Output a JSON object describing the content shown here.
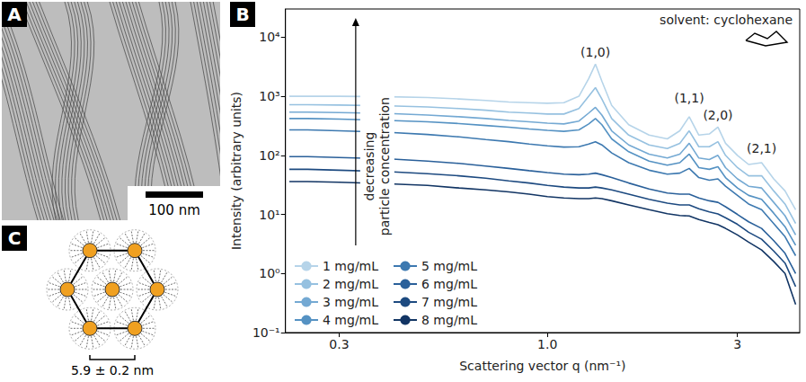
{
  "chart_data": {
    "type": "line",
    "log": true,
    "subtitle": "solvent: cyclohexane",
    "xlabel": "Scattering vector q (nm⁻¹)",
    "ylabel": "Intensity (arbitrary units)",
    "xlim": [
      0.22,
      4.3
    ],
    "ylim": [
      0.1,
      30000
    ],
    "xticks": [
      0.3,
      {
        "value": 1,
        "label": "1.0"
      },
      3
    ],
    "yticks": [
      {
        "value": 0.1,
        "label": "10⁻¹"
      },
      {
        "value": 1,
        "label": "10⁰"
      },
      {
        "value": 10,
        "label": "10¹"
      },
      {
        "value": 100,
        "label": "10²"
      },
      {
        "value": 1000,
        "label": "10³"
      },
      {
        "value": 10000,
        "label": "10⁴"
      }
    ],
    "grid": false,
    "legend": "lower left",
    "x": [
      0.225,
      0.25,
      0.3,
      0.4,
      0.5,
      0.6,
      0.7,
      0.8,
      0.9,
      1.0,
      1.1,
      1.2,
      1.27,
      1.32,
      1.37,
      1.45,
      1.6,
      1.8,
      2.0,
      2.15,
      2.27,
      2.4,
      2.55,
      2.68,
      2.8,
      3.0,
      3.2,
      3.45,
      3.7,
      3.95,
      4.2
    ],
    "series": [
      {
        "name": "1 mg/mL",
        "color": "#b6d4e9",
        "values": [
          1000,
          1000,
          1000,
          980,
          950,
          900,
          850,
          800,
          780,
          760,
          780,
          1000,
          2000,
          3500,
          1800,
          700,
          330,
          220,
          190,
          260,
          450,
          220,
          230,
          300,
          160,
          100,
          70,
          75,
          40,
          25,
          12
        ]
      },
      {
        "name": "2 mg/mL",
        "color": "#96c1e0",
        "values": [
          720,
          720,
          710,
          690,
          660,
          620,
          580,
          540,
          520,
          500,
          500,
          620,
          1000,
          1400,
          900,
          420,
          220,
          150,
          130,
          160,
          260,
          140,
          140,
          170,
          100,
          62,
          45,
          45,
          25,
          15,
          7
        ]
      },
      {
        "name": "3 mg/mL",
        "color": "#74a9d3",
        "values": [
          540,
          540,
          530,
          510,
          480,
          450,
          420,
          390,
          370,
          350,
          340,
          380,
          520,
          650,
          480,
          260,
          150,
          105,
          90,
          105,
          160,
          90,
          85,
          100,
          62,
          40,
          30,
          28,
          16,
          9.5,
          4.5
        ]
      },
      {
        "name": "4 mg/mL",
        "color": "#5592c3",
        "values": [
          420,
          420,
          410,
          390,
          370,
          345,
          320,
          300,
          280,
          265,
          255,
          270,
          340,
          420,
          330,
          190,
          115,
          80,
          68,
          75,
          105,
          62,
          58,
          64,
          42,
          28,
          21,
          18,
          10.5,
          6.2,
          3
        ]
      },
      {
        "name": "5 mg/mL",
        "color": "#3d79b0",
        "values": [
          270,
          270,
          260,
          245,
          225,
          205,
          185,
          170,
          155,
          145,
          138,
          140,
          155,
          170,
          150,
          110,
          75,
          56,
          48,
          50,
          60,
          42,
          38,
          40,
          30,
          21,
          15,
          12,
          7,
          4.2,
          2
        ]
      },
      {
        "name": "6 mg/mL",
        "color": "#2a609a",
        "values": [
          95,
          95,
          92,
          87,
          80,
          73,
          66,
          60,
          55,
          51,
          48,
          47,
          48,
          50,
          47,
          42,
          34,
          27,
          23,
          22,
          22,
          19,
          17,
          16,
          13.5,
          10,
          7.5,
          5.8,
          3.6,
          2.2,
          1
        ]
      },
      {
        "name": "7 mg/mL",
        "color": "#1d4a80",
        "values": [
          58,
          58,
          56,
          53,
          49,
          45,
          41,
          37,
          34,
          31,
          29,
          28,
          28,
          29,
          28,
          26,
          22,
          18,
          15.5,
          14.5,
          14.5,
          12.5,
          11,
          10.2,
          8.8,
          6.8,
          5,
          3.8,
          2.4,
          1.5,
          0.6
        ]
      },
      {
        "name": "8 mg/mL",
        "color": "#123564",
        "values": [
          36,
          36,
          35,
          33,
          31,
          28,
          26,
          24,
          22,
          20,
          19,
          18.5,
          18.5,
          19,
          18.5,
          17,
          14.5,
          12,
          10.3,
          9.6,
          9.4,
          8.2,
          7.3,
          6.7,
          5.8,
          4.5,
          3.4,
          2.5,
          1.6,
          1,
          0.3
        ]
      }
    ],
    "annotations": [
      {
        "text": "(1,0)",
        "x": 1.32,
        "y": 5600
      },
      {
        "text": "(1,1)",
        "x": 2.27,
        "y": 950
      },
      {
        "text": "(2,0)",
        "x": 2.68,
        "y": 480
      },
      {
        "text": "(2,1)",
        "x": 3.45,
        "y": 130
      },
      {
        "text": "decreasing particle concentration",
        "x": 0.374,
        "y": 65,
        "orientation": "vertical"
      }
    ]
  },
  "panels": {
    "A": {
      "label": "A",
      "scale_bar": "100 nm"
    },
    "B": {
      "label": "B"
    },
    "C": {
      "label": "C",
      "lattice_spacing": "5.9 ± 0.2 nm"
    }
  }
}
